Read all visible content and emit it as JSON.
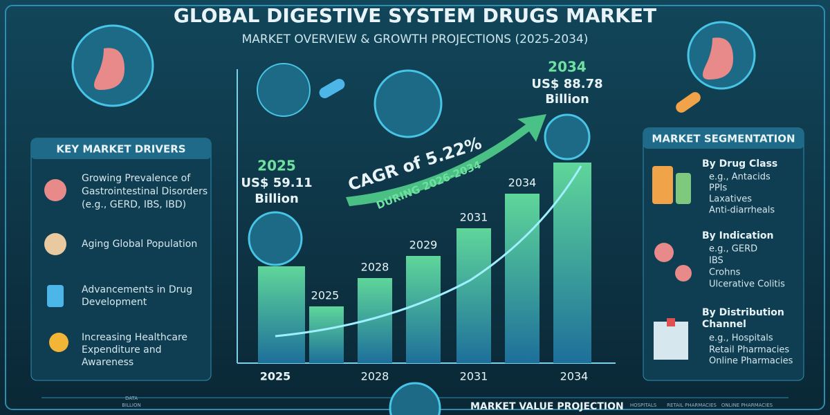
{
  "header": {
    "title": "GLOBAL DIGESTIVE SYSTEM DRUGS MARKET",
    "subtitle": "MARKET OVERVIEW & GROWTH PROJECTIONS (2025-2034)"
  },
  "start": {
    "year": "2025",
    "value": "US$ 59.11",
    "unit": "Billion"
  },
  "end": {
    "year": "2034",
    "value": "US$ 88.78",
    "unit": "Billion"
  },
  "cagr": {
    "text": "CAGR of 5.22%",
    "period": "DURING 2026-2034"
  },
  "bar_labels": [
    "2025",
    "2028",
    "2029",
    "2031",
    "2034"
  ],
  "x_labels": [
    "2025",
    "2028",
    "2031",
    "2034"
  ],
  "drivers": {
    "title": "KEY MARKET DRIVERS",
    "items": [
      [
        "Growing Prevalence of",
        "Gastrointestinal Disorders",
        "(e.g., GERD, IBS, IBD)"
      ],
      [
        "Aging Global Population"
      ],
      [
        "Advancements in Drug",
        "Development"
      ],
      [
        "Increasing Healthcare",
        "Expenditure and",
        "Awareness"
      ]
    ]
  },
  "segmentation": {
    "title": "MARKET SEGMENTATION",
    "groups": [
      {
        "title": [
          "By Drug Class"
        ],
        "items": [
          "e.g., Antacids",
          "PPIs",
          "Laxatives",
          "Anti-diarrheals"
        ]
      },
      {
        "title": [
          "By Indication"
        ],
        "items": [
          "e.g., GERD",
          "IBS",
          "Crohns",
          "Ulcerative Colitis"
        ]
      },
      {
        "title": [
          "By Distribution",
          "Channel"
        ],
        "items": [
          "e.g., Hospitals",
          "Retail Pharmacies",
          "Online Pharmacies"
        ]
      }
    ]
  },
  "footer": {
    "title": "MARKET VALUE PROJECTION",
    "labels": [
      "DATA",
      "BILLION",
      "HOSPITALS",
      "RETAIL PHARMACIES",
      "ONLINE PHARMACIES"
    ]
  }
}
